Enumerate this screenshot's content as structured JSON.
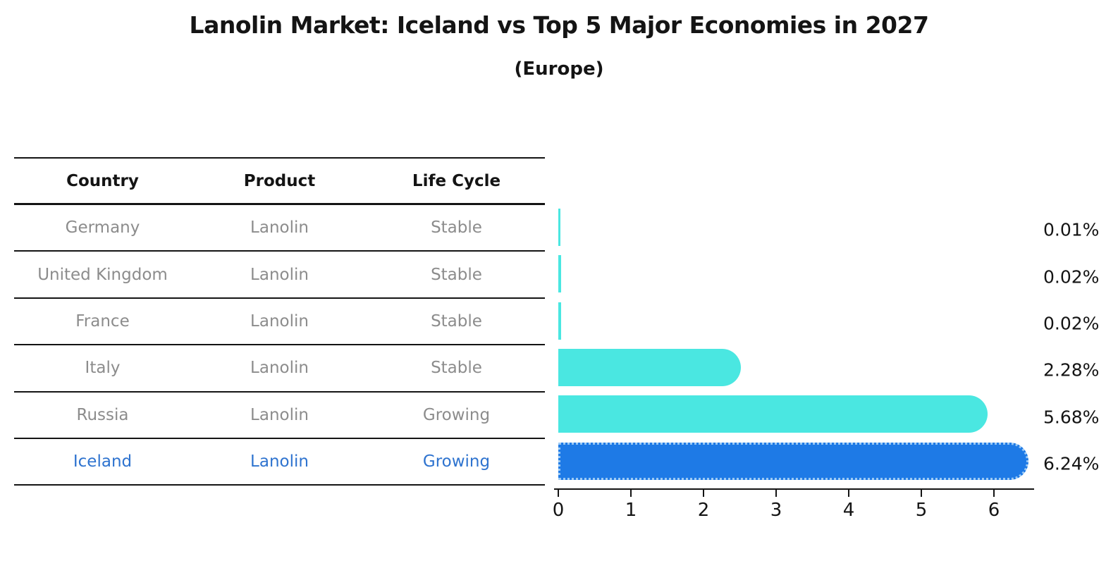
{
  "title": "Lanolin Market: Iceland vs Top 5 Major Economies in 2027",
  "subtitle": "(Europe)",
  "table": {
    "headers": [
      "Country",
      "Product",
      "Life Cycle"
    ],
    "rows": [
      {
        "country": "Germany",
        "product": "Lanolin",
        "life_cycle": "Stable",
        "highlighted": false
      },
      {
        "country": "United Kingdom",
        "product": "Lanolin",
        "life_cycle": "Stable",
        "highlighted": false
      },
      {
        "country": "France",
        "product": "Lanolin",
        "life_cycle": "Stable",
        "highlighted": false
      },
      {
        "country": "Italy",
        "product": "Lanolin",
        "life_cycle": "Stable",
        "highlighted": false
      },
      {
        "country": "Russia",
        "product": "Lanolin",
        "life_cycle": "Growing",
        "highlighted": false
      },
      {
        "country": "Iceland",
        "product": "Lanolin",
        "life_cycle": "Growing",
        "highlighted": true
      }
    ]
  },
  "chart_data": {
    "type": "bar",
    "orientation": "horizontal",
    "title": "Lanolin Market: Iceland vs Top 5 Major Economies in 2027",
    "subtitle": "(Europe)",
    "categories": [
      "Germany",
      "United Kingdom",
      "France",
      "Italy",
      "Russia",
      "Iceland"
    ],
    "values": [
      0.01,
      0.02,
      0.02,
      2.28,
      5.68,
      6.24
    ],
    "value_labels": [
      "0.01%",
      "0.02%",
      "0.02%",
      "2.28%",
      "5.68%",
      "6.24%"
    ],
    "xlabel": "",
    "ylabel": "",
    "xticks": [
      0,
      1,
      2,
      3,
      4,
      5,
      6
    ],
    "xlim": [
      0,
      6.55
    ],
    "grid": false,
    "legend": false,
    "bar_color": "#4AE7E1",
    "highlight_bar_color": "#1E7AE6",
    "highlight_index": 5
  },
  "colors": {
    "background": "#FFFFFF",
    "table_line": "#141414",
    "header_text": "#141414",
    "row_text": "#8C8C8C",
    "highlight_text": "#2E73CF",
    "axis": "#141414",
    "bar_cyan": "#4AE7E1",
    "bar_blue": "#1E7AE6",
    "highlight_bar_dots": "#9CCAF5"
  }
}
